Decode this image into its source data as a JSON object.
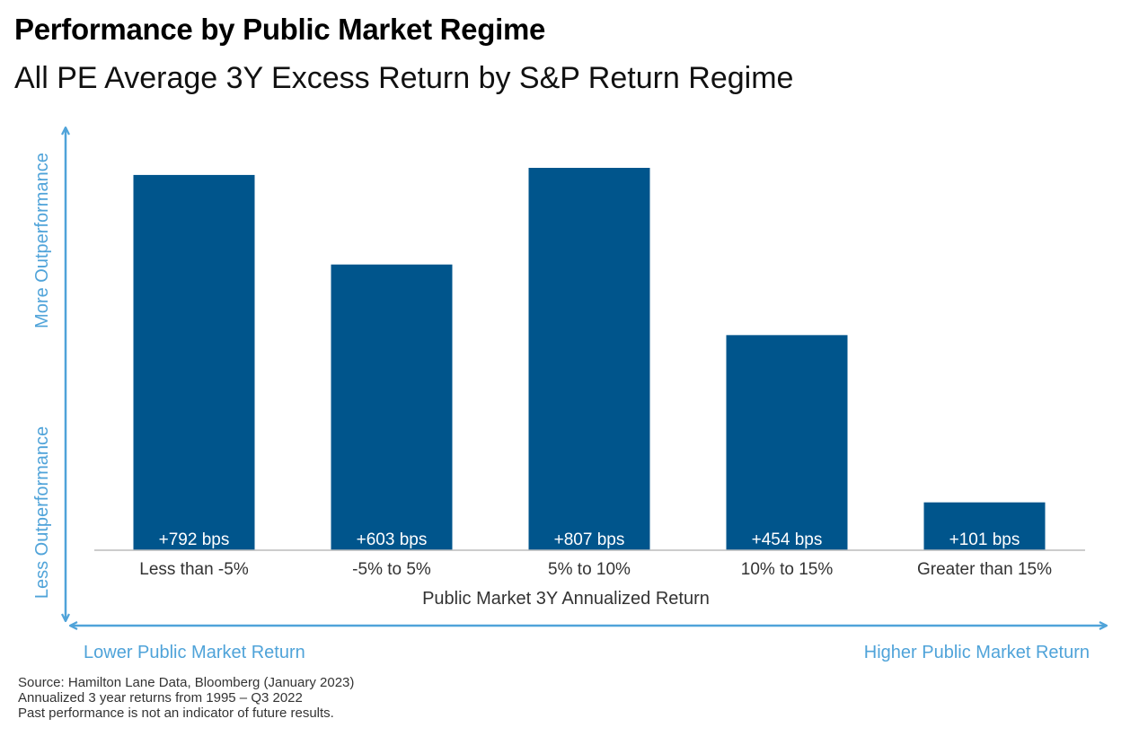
{
  "title": "Performance by Public Market Regime",
  "subtitle": "All PE Average 3Y Excess Return by S&P Return Regime",
  "colors": {
    "bar": "#00558C",
    "arrow": "#4FA3D9",
    "bar_label": "#FFFFFF",
    "axis_text": "#333333",
    "baseline": "#BBBBBB"
  },
  "y_arrow": {
    "top_label": "More Outperformance",
    "bottom_label": "Less Outperformance"
  },
  "x_arrow": {
    "left_label": "Lower Public Market Return",
    "right_label": "Higher Public Market Return"
  },
  "chart_data": {
    "type": "bar",
    "categories": [
      "Less than -5%",
      "-5% to 5%",
      "5% to 10%",
      "10% to 15%",
      "Greater than 15%"
    ],
    "values": [
      792,
      603,
      807,
      454,
      101
    ],
    "value_labels": [
      "+792 bps",
      "+603 bps",
      "+807 bps",
      "+454 bps",
      "+101 bps"
    ],
    "unit": "bps",
    "xlabel": "Public Market 3Y Annualized Return",
    "ylabel": "",
    "ylim": [
      0,
      807
    ],
    "grid": false,
    "legend": "none"
  },
  "footnotes": [
    "Source: Hamilton Lane Data, Bloomberg (January 2023)",
    "Annualized 3 year returns from 1995 – Q3 2022",
    "Past performance is not an indicator of future results."
  ]
}
